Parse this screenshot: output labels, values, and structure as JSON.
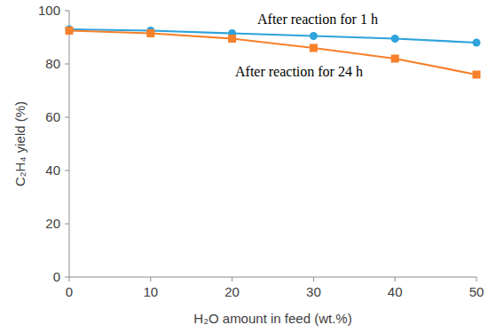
{
  "chart_data": {
    "type": "line",
    "x_label": "H₂O amount in feed (wt.%)",
    "y_label": "C₂H₄ yield  (%)",
    "x": [
      0,
      10,
      20,
      30,
      40,
      50
    ],
    "series": [
      {
        "name": "After reaction for 1 h",
        "color": "#2ea3dc",
        "marker": "circle",
        "line_style": "solid",
        "values": [
          93,
          92.5,
          91.5,
          90.5,
          89.5,
          88
        ]
      },
      {
        "name": "After reaction for 24 h",
        "color": "#f7802a",
        "marker": "square",
        "line_style": "solid",
        "values": [
          92.5,
          91.5,
          89.5,
          86,
          82,
          76
        ]
      }
    ],
    "xlim": [
      0,
      50
    ],
    "xticks": [
      0,
      10,
      20,
      30,
      40,
      50
    ],
    "ylim": [
      0,
      100
    ],
    "yticks": [
      0,
      20,
      40,
      60,
      80,
      100
    ],
    "grid": false
  }
}
